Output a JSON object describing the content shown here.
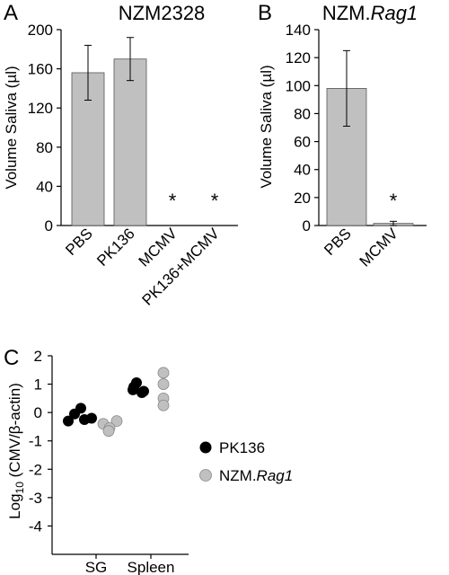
{
  "chart_data": [
    {
      "panel": "A",
      "type": "bar",
      "title": "NZM2328",
      "ylabel": "Volume Saliva (µl)",
      "ylim": [
        0,
        200
      ],
      "yticks": [
        0,
        40,
        80,
        120,
        160,
        200
      ],
      "categories": [
        "PBS",
        "PK136",
        "MCMV",
        "PK136+MCMV"
      ],
      "values": [
        156,
        170,
        0,
        0
      ],
      "errors": [
        28,
        22,
        0,
        0
      ],
      "significance": [
        "",
        "",
        "*",
        "*"
      ],
      "bar_color": "#c0c0c0"
    },
    {
      "panel": "B",
      "type": "bar",
      "title_prefix": "NZM.",
      "title_italic": "Rag1",
      "ylabel": "Volume Saliva (µl)",
      "ylim": [
        0,
        140
      ],
      "yticks": [
        0,
        20,
        40,
        60,
        80,
        100,
        120,
        140
      ],
      "categories": [
        "PBS",
        "MCMV"
      ],
      "values": [
        98,
        1.5
      ],
      "errors": [
        27,
        1.5
      ],
      "significance": [
        "",
        "*"
      ],
      "bar_color": "#c0c0c0"
    },
    {
      "panel": "C",
      "type": "scatter",
      "ylabel_prefix": "Log",
      "ylabel_sub": "10",
      "ylabel_suffix": " (CMV/β-actin)",
      "ylim": [
        -5,
        2
      ],
      "yticks": [
        2,
        1,
        0,
        -1,
        -2,
        -3,
        -4
      ],
      "categories": [
        "SG",
        "Spleen"
      ],
      "series": [
        {
          "legend_text": "PK136",
          "color": "#000000",
          "points": {
            "SG": [
              0.15,
              -0.05,
              -0.2,
              -0.3,
              -0.25
            ],
            "Spleen": [
              1.05,
              0.9,
              0.75,
              0.8,
              0.7
            ]
          }
        },
        {
          "legend_prefix": "NZM.",
          "legend_italic": "Rag1",
          "color": "#c0c0c0",
          "points": {
            "SG": [
              -0.3,
              -0.4,
              -0.55,
              -0.65
            ],
            "Spleen": [
              1.4,
              1.0,
              0.5,
              0.25
            ]
          }
        }
      ]
    }
  ]
}
